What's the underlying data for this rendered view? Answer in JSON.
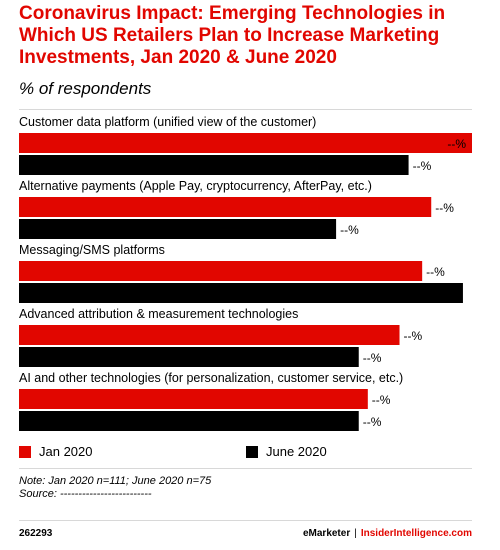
{
  "header": {
    "title": "Coronavirus Impact: Emerging Technologies in Which US Retailers Plan to Increase Marketing Investments, Jan 2020 & June 2020",
    "subtitle": "% of respondents"
  },
  "colors": {
    "jan_2020": "#e10600",
    "june_2020": "#000000",
    "title": "#e10600",
    "divider": "#d8d8d8"
  },
  "chart_data": {
    "type": "bar",
    "orientation": "horizontal",
    "categories": [
      "Customer data platform (unified view of the customer)",
      "Alternative payments (Apple Pay, cryptocurrency, AfterPay, etc.)",
      "Messaging/SMS platforms",
      "Advanced attribution & measurement technologies",
      "AI and other technologies (for personalization, customer service, etc.)"
    ],
    "series": [
      {
        "name": "Jan 2020",
        "color": "#e10600",
        "values": [
          100,
          91,
          89,
          84,
          77
        ],
        "labels": [
          "--%",
          "--%",
          "--%",
          "--%",
          "--%"
        ]
      },
      {
        "name": "June 2020",
        "color": "#000000",
        "values": [
          86,
          70,
          98,
          75,
          75
        ],
        "labels": [
          "--%",
          "--%",
          "--%",
          "--%",
          "--%"
        ]
      }
    ],
    "xlim": [
      0,
      100
    ],
    "grid": false,
    "legend": "bottom-left"
  },
  "legend": {
    "items": [
      {
        "label": "Jan 2020",
        "color": "#e10600"
      },
      {
        "label": "June 2020",
        "color": "#000000"
      }
    ]
  },
  "notes": {
    "note": "Note: Jan 2020 n=111; June 2020 n=75",
    "source": "Source: -------------------------"
  },
  "footer": {
    "id": "262293",
    "brand_primary": "eMarketer",
    "brand_separator": "|",
    "brand_secondary": "InsiderIntelligence.com"
  }
}
